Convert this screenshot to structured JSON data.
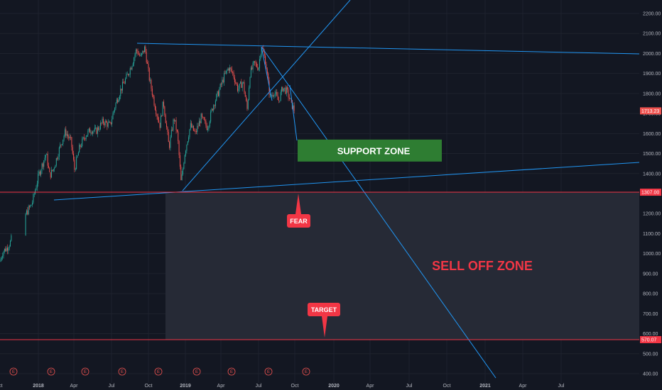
{
  "chart_data": {
    "type": "candlestick",
    "title": "",
    "xlabel": "",
    "ylabel": "",
    "ylim": [
      380,
      2240
    ],
    "y_ticks": [
      "2200.00",
      "2100.00",
      "2000.00",
      "1900.00",
      "1800.00",
      "1700.00",
      "1600.00",
      "1500.00",
      "1400.00",
      "1300.00",
      "1200.00",
      "1100.00",
      "1000.00",
      "900.00",
      "800.00",
      "700.00",
      "600.00",
      "500.00",
      "400.00"
    ],
    "x_ticks": [
      "Oct",
      "2018",
      "Apr",
      "Jul",
      "Oct",
      "2019",
      "Apr",
      "Jul",
      "Oct",
      "2020",
      "Apr",
      "Jul",
      "Oct",
      "2021",
      "Apr",
      "Jul"
    ],
    "x_ticks_bold": [
      "2018",
      "2019",
      "2020",
      "2021"
    ],
    "current_price": "1713.23",
    "price_levels": [
      {
        "label": "1307.00",
        "value": 1307.0
      },
      {
        "label": "570.07",
        "value": 570.07
      }
    ],
    "event_marker_label": "E",
    "event_count": 9,
    "annotations": {
      "support_zone": {
        "label": "SUPPORT ZONE",
        "top": 1570,
        "bottom": 1460
      },
      "sell_off_zone": {
        "label": "SELL OFF ZONE"
      },
      "fear": {
        "label": "FEAR",
        "value": 1307
      },
      "target": {
        "label": "TARGET",
        "value": 570.07
      }
    },
    "price_path": [
      [
        0,
        960
      ],
      [
        4,
        1010
      ],
      [
        10,
        1030
      ],
      [
        15,
        1060
      ],
      [
        20,
        1130
      ],
      [
        25,
        1160
      ],
      [
        35,
        1190
      ],
      [
        45,
        1250
      ],
      [
        55,
        1400
      ],
      [
        65,
        1500
      ],
      [
        70,
        1390
      ],
      [
        75,
        1420
      ],
      [
        85,
        1540
      ],
      [
        92,
        1610
      ],
      [
        100,
        1560
      ],
      [
        105,
        1420
      ],
      [
        112,
        1530
      ],
      [
        120,
        1590
      ],
      [
        128,
        1620
      ],
      [
        135,
        1610
      ],
      [
        145,
        1660
      ],
      [
        155,
        1640
      ],
      [
        162,
        1740
      ],
      [
        170,
        1820
      ],
      [
        178,
        1880
      ],
      [
        185,
        1940
      ],
      [
        192,
        2020
      ],
      [
        198,
        1980
      ],
      [
        204,
        2030
      ],
      [
        210,
        1880
      ],
      [
        218,
        1740
      ],
      [
        225,
        1640
      ],
      [
        230,
        1760
      ],
      [
        238,
        1530
      ],
      [
        245,
        1680
      ],
      [
        250,
        1590
      ],
      [
        255,
        1350
      ],
      [
        260,
        1500
      ],
      [
        268,
        1640
      ],
      [
        275,
        1600
      ],
      [
        283,
        1680
      ],
      [
        292,
        1630
      ],
      [
        300,
        1740
      ],
      [
        307,
        1800
      ],
      [
        315,
        1880
      ],
      [
        322,
        1930
      ],
      [
        328,
        1900
      ],
      [
        335,
        1820
      ],
      [
        342,
        1860
      ],
      [
        348,
        1720
      ],
      [
        352,
        1900
      ],
      [
        358,
        1950
      ],
      [
        364,
        1930
      ],
      [
        368,
        2040
      ],
      [
        374,
        1960
      ],
      [
        380,
        1780
      ],
      [
        386,
        1810
      ],
      [
        392,
        1760
      ],
      [
        398,
        1830
      ],
      [
        404,
        1810
      ],
      [
        410,
        1750
      ],
      [
        415,
        1713
      ]
    ]
  },
  "colors": {
    "background": "#131722",
    "grid": "#1e222d",
    "up": "#26a69a",
    "down": "#ef5350",
    "trendline": "#2196f3",
    "level_line": "#f23645",
    "support_zone": "#2e7d32",
    "sell_zone": "#262a36"
  }
}
